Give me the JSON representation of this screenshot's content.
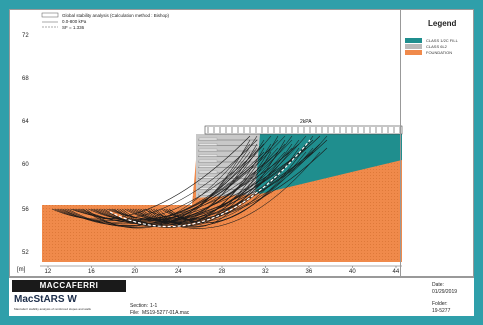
{
  "header": {
    "lines": [
      "Global stability analysis (Calculation method : Bishop)",
      "0.0-800 kPa",
      "SF = 1.336"
    ]
  },
  "axes": {
    "x_ticks": [
      "12",
      "16",
      "20",
      "24",
      "28",
      "32",
      "36",
      "40",
      "44"
    ],
    "y_ticks": [
      "72",
      "68",
      "64",
      "60",
      "56",
      "52"
    ],
    "unit": "[m]"
  },
  "surcharge_label": "2kPA",
  "legend": {
    "title": "Legend",
    "items": [
      {
        "label": "CLASS 1/2C FILL",
        "color": "#1f8e8e"
      },
      {
        "label": "CLASS 6L2",
        "color": "#b9b9b9"
      },
      {
        "label": "FOUNDATION",
        "color": "#f08a4b"
      }
    ]
  },
  "footer": {
    "brand": "MACCAFERRI",
    "product": "MacStARS W",
    "product_desc": "Maccaferri stability analysis of reinforced slopes and walls",
    "section_label": "Section:",
    "section_value": "1-1",
    "file_label": "File:",
    "file_value": "MS19-5277-01A.mac",
    "date_label": "Date:",
    "date_value": "01/29/2019",
    "folder_label": "Folder:",
    "folder_value": "19-5277"
  }
}
